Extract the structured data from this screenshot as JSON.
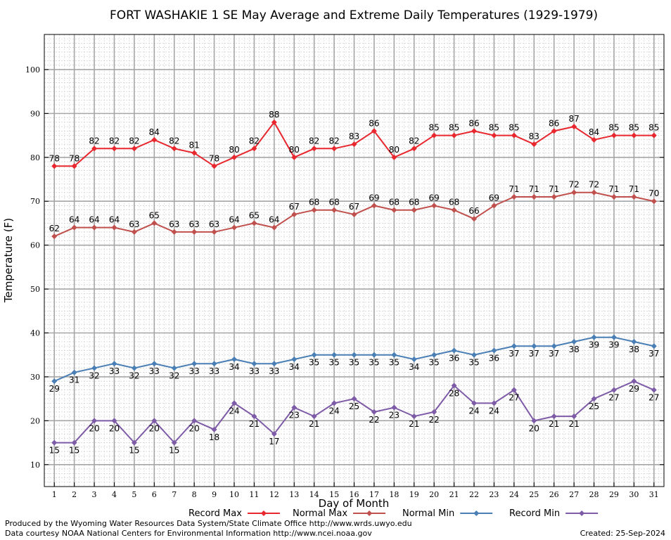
{
  "chart_data": {
    "type": "line",
    "title": "FORT WASHAKIE 1 SE May Average and Extreme Daily Temperatures (1929-1979)",
    "xlabel": "Day of Month",
    "ylabel": "Temperature (F)",
    "xlim": [
      0.5,
      31.5
    ],
    "ylim": [
      5,
      108
    ],
    "y_ticks": [
      10,
      20,
      30,
      40,
      50,
      60,
      70,
      80,
      90,
      100
    ],
    "x": [
      1,
      2,
      3,
      4,
      5,
      6,
      7,
      8,
      9,
      10,
      11,
      12,
      13,
      14,
      15,
      16,
      17,
      18,
      19,
      20,
      21,
      22,
      23,
      24,
      25,
      26,
      27,
      28,
      29,
      30,
      31
    ],
    "grid": true,
    "legend_position": "bottom",
    "series": [
      {
        "name": "Record Max",
        "color": "#e8272e",
        "label_pos": "above",
        "values": [
          78,
          78,
          82,
          82,
          82,
          84,
          82,
          81,
          78,
          80,
          82,
          88,
          80,
          82,
          82,
          83,
          86,
          80,
          82,
          85,
          85,
          86,
          85,
          85,
          83,
          86,
          87,
          84,
          85,
          85,
          85
        ]
      },
      {
        "name": "Normal Max",
        "color": "#c0504d",
        "label_pos": "above",
        "values": [
          62,
          64,
          64,
          64,
          63,
          65,
          63,
          63,
          63,
          64,
          65,
          64,
          67,
          68,
          68,
          67,
          69,
          68,
          68,
          69,
          68,
          66,
          69,
          71,
          71,
          71,
          72,
          72,
          71,
          71,
          70
        ]
      },
      {
        "name": "Normal Min",
        "color": "#4a7fb5",
        "label_pos": "below",
        "values": [
          29,
          31,
          32,
          33,
          32,
          33,
          32,
          33,
          33,
          34,
          33,
          33,
          34,
          35,
          35,
          35,
          35,
          35,
          34,
          35,
          36,
          35,
          36,
          37,
          37,
          37,
          38,
          39,
          39,
          38,
          37
        ]
      },
      {
        "name": "Record Min",
        "color": "#7d5ba6",
        "label_pos": "below",
        "values": [
          15,
          15,
          20,
          20,
          15,
          20,
          15,
          20,
          18,
          24,
          21,
          17,
          23,
          21,
          24,
          25,
          22,
          23,
          21,
          22,
          28,
          24,
          24,
          27,
          20,
          21,
          21,
          25,
          27,
          29,
          27
        ]
      }
    ]
  },
  "footer": {
    "produced_by": "Produced by the Wyoming Water Resources Data System/State Climate Office http://www.wrds.uwyo.edu",
    "courtesy": "Data courtesy NOAA National Centers for Environmental Information http://www.ncei.noaa.gov",
    "created": "Created:  25-Sep-2024"
  }
}
